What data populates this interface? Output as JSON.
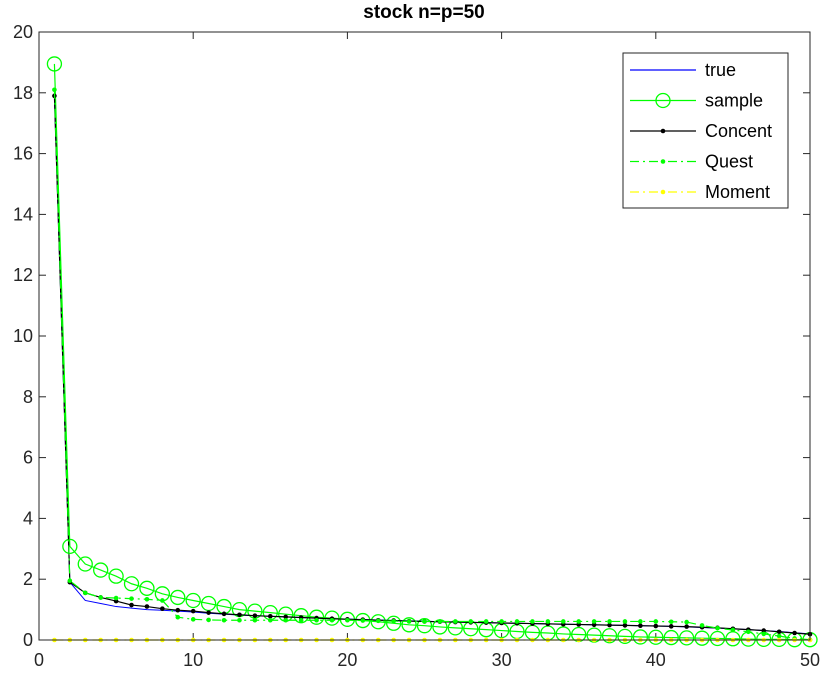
{
  "chart_data": {
    "type": "line",
    "title": "stock n=p=50",
    "xlabel": "",
    "ylabel": "",
    "xlim": [
      0,
      50
    ],
    "ylim": [
      0,
      20
    ],
    "xticks": [
      0,
      10,
      20,
      30,
      40,
      50
    ],
    "yticks": [
      0,
      2,
      4,
      6,
      8,
      10,
      12,
      14,
      16,
      18,
      20
    ],
    "grid": false,
    "legend_position": "top-right",
    "series": [
      {
        "name": "true",
        "color": "#0000ff",
        "style": "solid",
        "marker": "none",
        "x": [
          1,
          2,
          3,
          4,
          5,
          6,
          7,
          8,
          9,
          10,
          11,
          12,
          13,
          14,
          15,
          16,
          17,
          18,
          19,
          20,
          21,
          22,
          23,
          24,
          25,
          26,
          27,
          28,
          29,
          30,
          31,
          32,
          33,
          34,
          35,
          36,
          37,
          38,
          39,
          40,
          41,
          42,
          43,
          44,
          45,
          46,
          47,
          48,
          49,
          50
        ],
        "y": [
          17.9,
          1.9,
          1.3,
          1.2,
          1.1,
          1.05,
          1.0,
          0.98,
          0.95,
          0.92,
          0.88,
          0.85,
          0.82,
          0.8,
          0.78,
          0.76,
          0.74,
          0.72,
          0.7,
          0.69,
          0.67,
          0.66,
          0.64,
          0.63,
          0.62,
          0.6,
          0.59,
          0.58,
          0.57,
          0.56,
          0.55,
          0.54,
          0.53,
          0.52,
          0.51,
          0.5,
          0.49,
          0.48,
          0.47,
          0.46,
          0.45,
          0.43,
          0.41,
          0.39,
          0.37,
          0.34,
          0.31,
          0.28,
          0.24,
          0.2
        ]
      },
      {
        "name": "sample",
        "color": "#00ff00",
        "style": "solid",
        "marker": "circle",
        "x": [
          1,
          2,
          3,
          4,
          5,
          6,
          7,
          8,
          9,
          10,
          11,
          12,
          13,
          14,
          15,
          16,
          17,
          18,
          19,
          20,
          21,
          22,
          23,
          24,
          25,
          26,
          27,
          28,
          29,
          30,
          31,
          32,
          33,
          34,
          35,
          36,
          37,
          38,
          39,
          40,
          41,
          42,
          43,
          44,
          45,
          46,
          47,
          48,
          49,
          50
        ],
        "y": [
          18.95,
          3.08,
          2.5,
          2.3,
          2.1,
          1.85,
          1.7,
          1.52,
          1.4,
          1.3,
          1.2,
          1.1,
          1.0,
          0.95,
          0.9,
          0.85,
          0.8,
          0.75,
          0.72,
          0.68,
          0.64,
          0.6,
          0.55,
          0.5,
          0.47,
          0.43,
          0.4,
          0.37,
          0.34,
          0.31,
          0.28,
          0.25,
          0.23,
          0.2,
          0.18,
          0.16,
          0.14,
          0.12,
          0.1,
          0.09,
          0.08,
          0.07,
          0.06,
          0.05,
          0.04,
          0.03,
          0.02,
          0.02,
          0.01,
          0.01
        ]
      },
      {
        "name": "Concent",
        "color": "#000000",
        "style": "solid",
        "marker": "dot",
        "x": [
          1,
          2,
          3,
          4,
          5,
          6,
          7,
          8,
          9,
          10,
          11,
          12,
          13,
          14,
          15,
          16,
          17,
          18,
          19,
          20,
          21,
          22,
          23,
          24,
          25,
          26,
          27,
          28,
          29,
          30,
          31,
          32,
          33,
          34,
          35,
          36,
          37,
          38,
          39,
          40,
          41,
          42,
          43,
          44,
          45,
          46,
          47,
          48,
          49,
          50
        ],
        "y": [
          17.9,
          1.9,
          1.55,
          1.4,
          1.28,
          1.15,
          1.1,
          1.03,
          0.98,
          0.95,
          0.9,
          0.86,
          0.83,
          0.8,
          0.78,
          0.76,
          0.74,
          0.72,
          0.7,
          0.68,
          0.67,
          0.65,
          0.64,
          0.62,
          0.61,
          0.6,
          0.59,
          0.58,
          0.57,
          0.56,
          0.55,
          0.54,
          0.53,
          0.52,
          0.51,
          0.5,
          0.49,
          0.48,
          0.47,
          0.46,
          0.45,
          0.44,
          0.42,
          0.4,
          0.37,
          0.34,
          0.31,
          0.27,
          0.23,
          0.19
        ]
      },
      {
        "name": "Quest",
        "color": "#00ff00",
        "style": "dashdot",
        "marker": "dot",
        "x": [
          1,
          2,
          3,
          4,
          5,
          6,
          7,
          8,
          9,
          10,
          11,
          12,
          13,
          14,
          15,
          16,
          17,
          18,
          19,
          20,
          21,
          22,
          23,
          24,
          25,
          26,
          27,
          28,
          29,
          30,
          31,
          32,
          33,
          34,
          35,
          36,
          37,
          38,
          39,
          40,
          41,
          42,
          43,
          44,
          45,
          46,
          47,
          48,
          49,
          50
        ],
        "y": [
          18.1,
          1.95,
          1.55,
          1.4,
          1.38,
          1.36,
          1.34,
          1.3,
          0.75,
          0.68,
          0.66,
          0.65,
          0.65,
          0.65,
          0.65,
          0.65,
          0.65,
          0.65,
          0.65,
          0.65,
          0.64,
          0.63,
          0.62,
          0.61,
          0.61,
          0.61,
          0.61,
          0.61,
          0.61,
          0.61,
          0.61,
          0.61,
          0.61,
          0.61,
          0.61,
          0.61,
          0.61,
          0.61,
          0.61,
          0.61,
          0.6,
          0.59,
          0.48,
          0.39,
          0.33,
          0.27,
          0.2,
          0.13,
          0.05,
          0.01
        ]
      },
      {
        "name": "Moment",
        "color": "#ffff00",
        "style": "dashdot",
        "marker": "dot",
        "x": [
          1,
          2,
          3,
          4,
          5,
          6,
          7,
          8,
          9,
          10,
          11,
          12,
          13,
          14,
          15,
          16,
          17,
          18,
          19,
          20,
          21,
          22,
          23,
          24,
          25,
          26,
          27,
          28,
          29,
          30,
          31,
          32,
          33,
          34,
          35,
          36,
          37,
          38,
          39,
          40,
          41,
          42,
          43,
          44,
          45,
          46,
          47,
          48,
          49,
          50
        ],
        "y": [
          0,
          0,
          0,
          0,
          0,
          0,
          0,
          0,
          0,
          0,
          0,
          0,
          0,
          0,
          0,
          0,
          0,
          0,
          0,
          0,
          0,
          0,
          0,
          0,
          0,
          0,
          0,
          0,
          0,
          0,
          0,
          0,
          0,
          0,
          0,
          0,
          0,
          0,
          0,
          0,
          0,
          0,
          0,
          0,
          0,
          0,
          0,
          0,
          0,
          0
        ]
      }
    ]
  }
}
